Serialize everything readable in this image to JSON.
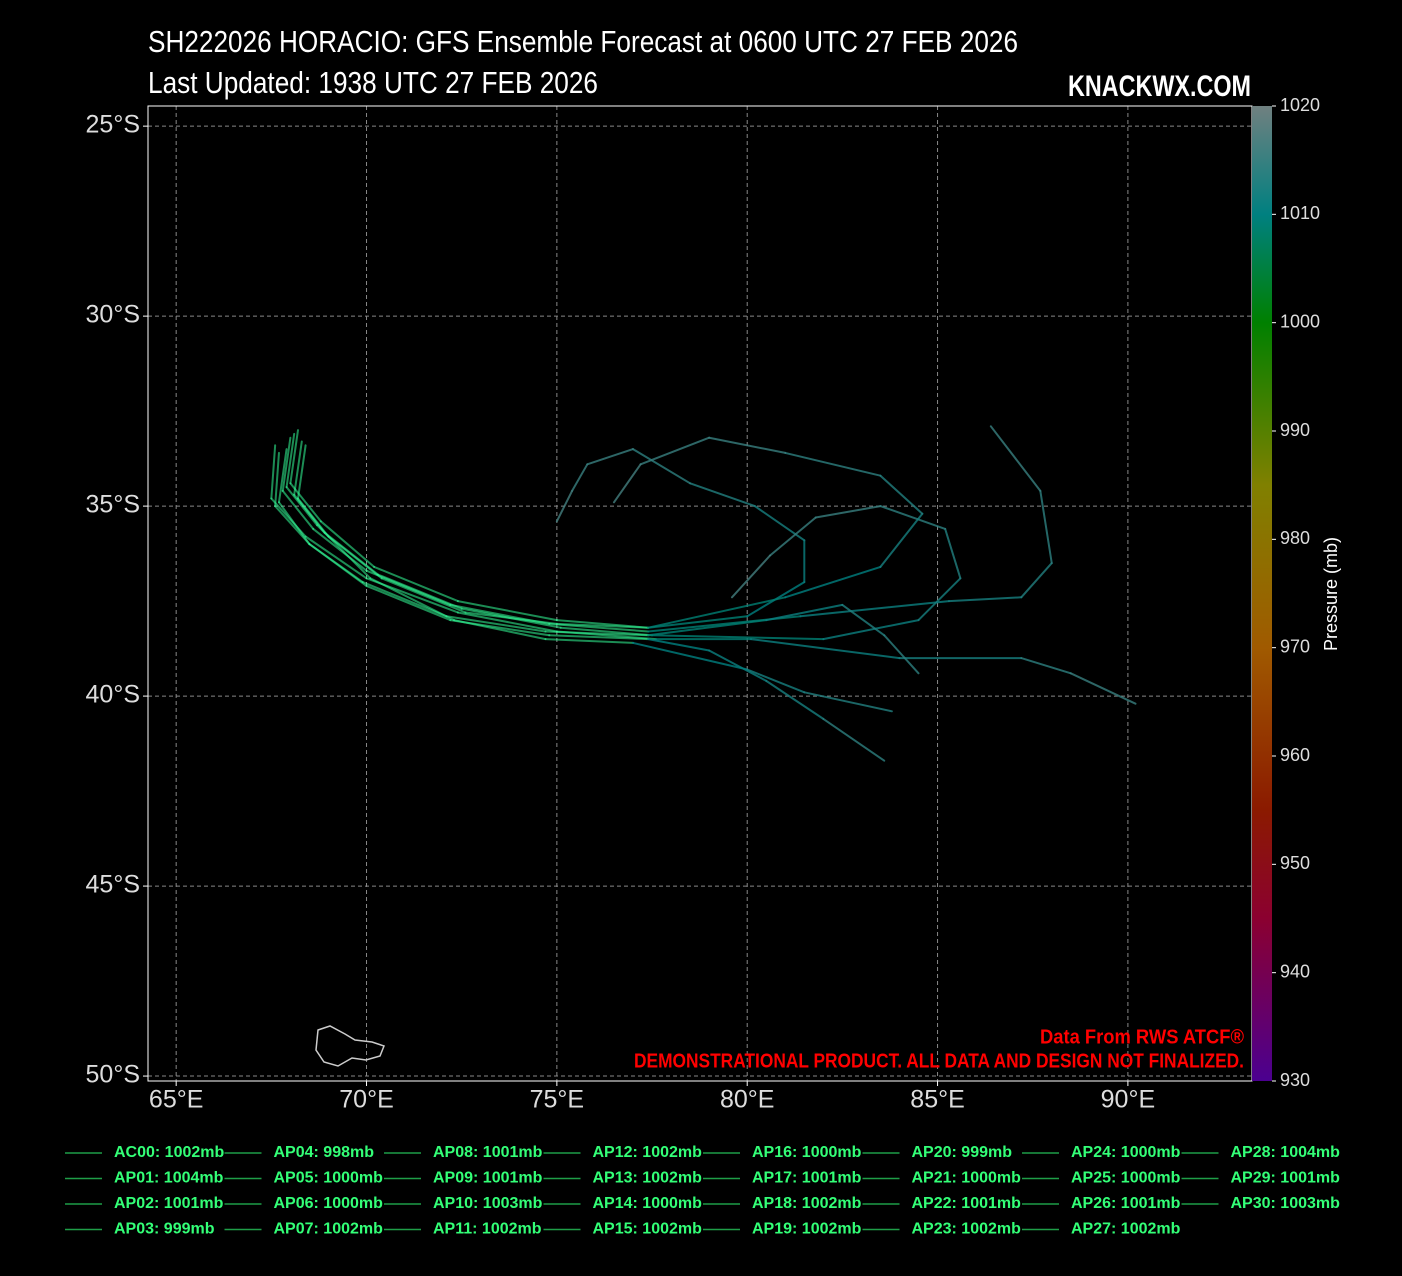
{
  "chart_data": {
    "type": "track-map",
    "title": "SH222026 HORACIO: GFS Ensemble Forecast at 0600 UTC 27 FEB 2026",
    "subtitle": "Last Updated: 1938 UTC 27 FEB 2026",
    "brand": "KNACKWX.COM",
    "credit": "Data From RWS ATCF®",
    "disclaimer": "DEMONSTRATIONAL PRODUCT. ALL DATA AND DESIGN NOT FINALIZED.",
    "xlim": [
      64.26,
      93.26
    ],
    "ylim": [
      -50.13,
      -24.47
    ],
    "xticks": [
      {
        "value": 65,
        "label": "65°E"
      },
      {
        "value": 70,
        "label": "70°E"
      },
      {
        "value": 75,
        "label": "75°E"
      },
      {
        "value": 80,
        "label": "80°E"
      },
      {
        "value": 85,
        "label": "85°E"
      },
      {
        "value": 90,
        "label": "90°E"
      }
    ],
    "yticks": [
      {
        "value": -25,
        "label": "25°S"
      },
      {
        "value": -30,
        "label": "30°S"
      },
      {
        "value": -35,
        "label": "35°S"
      },
      {
        "value": -40,
        "label": "40°S"
      },
      {
        "value": -45,
        "label": "45°S"
      },
      {
        "value": -50,
        "label": "50°S"
      }
    ],
    "grid": true,
    "colorbar": {
      "label": "Pressure (mb)",
      "lim": [
        930,
        1020
      ],
      "ticks": [
        930,
        940,
        950,
        960,
        970,
        980,
        990,
        1000,
        1010,
        1020
      ],
      "colormap": [
        {
          "value": 930,
          "color": "#4b0090"
        },
        {
          "value": 945,
          "color": "#8b0030"
        },
        {
          "value": 955,
          "color": "#8b1a00"
        },
        {
          "value": 970,
          "color": "#a05a00"
        },
        {
          "value": 985,
          "color": "#808000"
        },
        {
          "value": 1000,
          "color": "#008000"
        },
        {
          "value": 1010,
          "color": "#008080"
        },
        {
          "value": 1020,
          "color": "#708080"
        }
      ]
    },
    "track_highlight": "#33ff99",
    "tracks": [
      {
        "lon": [
          68.0,
          67.8,
          68.6,
          70.0,
          72.2,
          74.8,
          77.4,
          81.4,
          85.3,
          87.2,
          88.0,
          87.7,
          86.4
        ],
        "lat": [
          -33.2,
          -34.6,
          -35.6,
          -36.7,
          -37.6,
          -38.1,
          -38.3,
          -37.9,
          -37.5,
          -37.4,
          -36.5,
          -34.6,
          -32.9
        ],
        "pres": [
          1002,
          1001,
          1001,
          1003,
          1006,
          1008,
          1009,
          1011,
          1012,
          1013,
          1014,
          1015,
          1016
        ]
      },
      {
        "lon": [
          67.6,
          67.5,
          68.4,
          70.0,
          72.4,
          75.0,
          77.6,
          80.1,
          84.0,
          87.2,
          88.5,
          90.2
        ],
        "lat": [
          -33.4,
          -34.8,
          -35.8,
          -36.9,
          -37.8,
          -38.3,
          -38.5,
          -38.5,
          -39.0,
          -39.0,
          -39.4,
          -40.2
        ],
        "pres": [
          1004,
          1002,
          1002,
          1004,
          1006,
          1008,
          1009,
          1011,
          1012,
          1014,
          1015,
          1016
        ]
      },
      {
        "lon": [
          68.2,
          68.0,
          68.8,
          70.2,
          72.4,
          75.0,
          77.4,
          80.0,
          81.5,
          81.5,
          80.2,
          78.5,
          77.0,
          75.8,
          75.4,
          75.0
        ],
        "lat": [
          -33.0,
          -34.4,
          -35.4,
          -36.6,
          -37.5,
          -38.0,
          -38.2,
          -37.9,
          -37.0,
          -35.9,
          -35.0,
          -34.4,
          -33.5,
          -33.9,
          -34.6,
          -35.4
        ],
        "pres": [
          999,
          1000,
          1001,
          1003,
          1005,
          1007,
          1009,
          1010,
          1011,
          1012,
          1013,
          1014,
          1015,
          1015,
          1016,
          1016
        ]
      },
      {
        "lon": [
          68.3,
          68.1,
          68.9,
          70.3,
          72.5,
          75.1,
          77.5,
          82.0,
          84.5,
          85.6,
          85.2,
          83.5,
          81.8,
          80.6,
          79.6
        ],
        "lat": [
          -33.3,
          -34.7,
          -35.7,
          -36.8,
          -37.7,
          -38.2,
          -38.4,
          -38.5,
          -38.0,
          -36.9,
          -35.6,
          -35.0,
          -35.3,
          -36.3,
          -37.4
        ],
        "pres": [
          1001,
          1001,
          1002,
          1004,
          1006,
          1008,
          1009,
          1011,
          1012,
          1013,
          1014,
          1015,
          1015,
          1016,
          1016
        ]
      },
      {
        "lon": [
          67.9,
          67.7,
          68.5,
          70.0,
          72.2,
          74.8,
          77.4,
          79.0,
          80.5,
          82.0,
          83.6
        ],
        "lat": [
          -33.5,
          -34.9,
          -36.0,
          -37.1,
          -38.0,
          -38.4,
          -38.5,
          -38.8,
          -39.6,
          -40.6,
          -41.7
        ],
        "pres": [
          1000,
          1000,
          1002,
          1004,
          1006,
          1008,
          1010,
          1011,
          1012,
          1014,
          1015
        ]
      },
      {
        "lon": [
          68.1,
          67.9,
          68.7,
          70.1,
          72.3,
          74.7,
          77.0,
          80.0,
          81.5,
          83.8
        ],
        "lat": [
          -33.1,
          -34.5,
          -35.5,
          -36.9,
          -38.0,
          -38.5,
          -38.6,
          -39.3,
          -39.9,
          -40.4
        ],
        "pres": [
          1002,
          1001,
          1002,
          1004,
          1006,
          1008,
          1010,
          1012,
          1013,
          1015
        ]
      },
      {
        "lon": [
          68.4,
          68.2,
          69.0,
          70.4,
          72.6,
          75.0,
          77.4,
          81.0,
          83.5,
          84.6,
          83.5,
          81.0,
          79.0,
          77.2,
          76.5
        ],
        "lat": [
          -33.4,
          -34.8,
          -35.8,
          -36.9,
          -37.8,
          -38.1,
          -38.2,
          -37.4,
          -36.6,
          -35.2,
          -34.2,
          -33.6,
          -33.2,
          -33.9,
          -34.9
        ],
        "pres": [
          1001,
          1000,
          1002,
          1003,
          1005,
          1007,
          1009,
          1010,
          1012,
          1013,
          1014,
          1015,
          1015,
          1016,
          1016
        ]
      },
      {
        "lon": [
          67.7,
          67.6,
          68.5,
          69.9,
          72.1,
          74.7,
          77.4,
          80.5,
          82.5,
          83.6,
          84.5
        ],
        "lat": [
          -33.6,
          -35.0,
          -36.0,
          -37.0,
          -37.9,
          -38.3,
          -38.4,
          -38.0,
          -37.6,
          -38.4,
          -39.4
        ],
        "pres": [
          1002,
          1001,
          1002,
          1004,
          1006,
          1008,
          1009,
          1011,
          1013,
          1014,
          1015
        ]
      }
    ],
    "legend_line_color": "#1e9e48",
    "legend_text_color": "#33ff77",
    "legend": [
      "AC00: 1002mb",
      "AP01: 1004mb",
      "AP02: 1001mb",
      "AP03: 999mb",
      "AP04: 998mb",
      "AP05: 1000mb",
      "AP06: 1000mb",
      "AP07: 1002mb",
      "AP08: 1001mb",
      "AP09: 1001mb",
      "AP10: 1003mb",
      "AP11: 1002mb",
      "AP12: 1002mb",
      "AP13: 1002mb",
      "AP14: 1000mb",
      "AP15: 1002mb",
      "AP16: 1000mb",
      "AP17: 1001mb",
      "AP18: 1002mb",
      "AP19: 1002mb",
      "AP20: 999mb",
      "AP21: 1000mb",
      "AP22: 1001mb",
      "AP23: 1002mb",
      "AP24: 1000mb",
      "AP25: 1000mb",
      "AP26: 1001mb",
      "AP27: 1002mb",
      "AP28: 1004mb",
      "AP29: 1001mb",
      "AP30: 1003mb"
    ]
  }
}
